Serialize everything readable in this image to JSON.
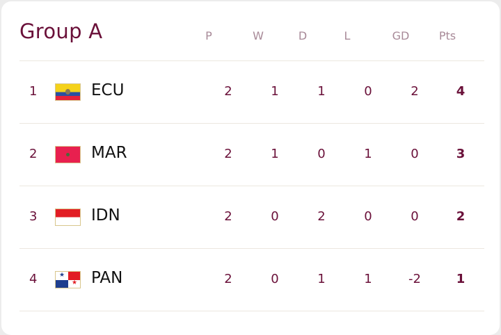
{
  "group": {
    "title": "Group A"
  },
  "columns": [
    "P",
    "W",
    "D",
    "L",
    "GD",
    "Pts"
  ],
  "rows": [
    {
      "rank": "1",
      "team": "ECU",
      "flag": "ecuador-flag-icon",
      "p": "2",
      "w": "1",
      "d": "1",
      "l": "0",
      "gd": "2",
      "pts": "4"
    },
    {
      "rank": "2",
      "team": "MAR",
      "flag": "morocco-flag-icon",
      "p": "2",
      "w": "1",
      "d": "0",
      "l": "1",
      "gd": "0",
      "pts": "3"
    },
    {
      "rank": "3",
      "team": "IDN",
      "flag": "indonesia-flag-icon",
      "p": "2",
      "w": "0",
      "d": "2",
      "l": "0",
      "gd": "0",
      "pts": "2"
    },
    {
      "rank": "4",
      "team": "PAN",
      "flag": "panama-flag-icon",
      "p": "2",
      "w": "0",
      "d": "1",
      "l": "1",
      "gd": "-2",
      "pts": "1"
    }
  ],
  "colors": {
    "accent": "#6a1039",
    "header": "#a88a98"
  }
}
